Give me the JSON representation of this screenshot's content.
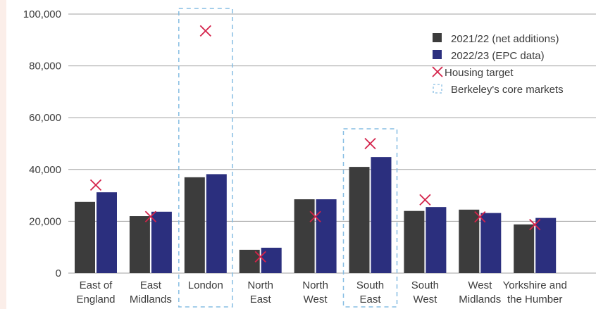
{
  "chart_data": {
    "type": "bar",
    "title": "",
    "xlabel": "",
    "ylabel": "",
    "ylim": [
      0,
      100000
    ],
    "yticks": [
      0,
      20000,
      40000,
      60000,
      80000,
      100000
    ],
    "ytick_labels": [
      "0",
      "20,000",
      "40,000",
      "60,000",
      "80,000",
      "100,000"
    ],
    "grid": true,
    "legend_position": "top-right",
    "categories": [
      [
        "East of",
        "England"
      ],
      [
        "East",
        "Midlands"
      ],
      [
        "London"
      ],
      [
        "North",
        "East"
      ],
      [
        "North",
        "West"
      ],
      [
        "South",
        "East"
      ],
      [
        "South",
        "West"
      ],
      [
        "West",
        "Midlands"
      ],
      [
        "Yorkshire and",
        "the Humber"
      ]
    ],
    "series": [
      {
        "name": "2021/22 (net additions)",
        "color": "#3c3c3c",
        "values": [
          27500,
          22000,
          37000,
          9000,
          28500,
          41000,
          24000,
          24500,
          18800
        ]
      },
      {
        "name": "2022/23 (EPC data)",
        "color": "#2b2f7e",
        "values": [
          31200,
          23700,
          38200,
          9800,
          28500,
          44800,
          25500,
          23200,
          21300
        ]
      }
    ],
    "housing_target": {
      "name": "Housing target",
      "color": "#d4224a",
      "values": [
        34000,
        21800,
        93500,
        6300,
        21800,
        50000,
        28300,
        21700,
        18700
      ]
    },
    "highlight": {
      "name": "Berkeley's core markets",
      "color": "#86bde3",
      "categories": [
        "London",
        "South East"
      ]
    }
  }
}
